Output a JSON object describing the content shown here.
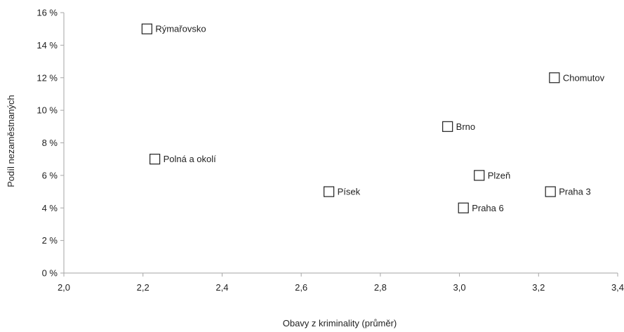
{
  "chart_data": {
    "type": "scatter",
    "xlabel": "Obavy z kriminality (průměr)",
    "ylabel": "Podíl nezaměstnaných",
    "xlim": [
      2.0,
      3.4
    ],
    "ylim": [
      0,
      16
    ],
    "x_ticks": [
      2.0,
      2.2,
      2.4,
      2.6,
      2.8,
      3.0,
      3.2,
      3.4
    ],
    "x_tick_labels": [
      "2,0",
      "2,2",
      "2,4",
      "2,6",
      "2,8",
      "3,0",
      "3,2",
      "3,4"
    ],
    "y_ticks": [
      0,
      2,
      4,
      6,
      8,
      10,
      12,
      14,
      16
    ],
    "y_tick_labels": [
      "0 %",
      "2 %",
      "4 %",
      "6 %",
      "8 %",
      "10 %",
      "12 %",
      "14 %",
      "16 %"
    ],
    "grid": false,
    "marker": "square-open",
    "points": [
      {
        "label": "Rýmařovsko",
        "x": 2.21,
        "y": 15
      },
      {
        "label": "Chomutov",
        "x": 3.24,
        "y": 12
      },
      {
        "label": "Brno",
        "x": 2.97,
        "y": 9
      },
      {
        "label": "Polná a okolí",
        "x": 2.23,
        "y": 7
      },
      {
        "label": "Plzeň",
        "x": 3.05,
        "y": 6
      },
      {
        "label": "Písek",
        "x": 2.67,
        "y": 5
      },
      {
        "label": "Praha 3",
        "x": 3.23,
        "y": 5
      },
      {
        "label": "Praha 6",
        "x": 3.01,
        "y": 4
      }
    ]
  },
  "colors": {
    "axis": "#a6a6a6",
    "text": "#1f1f1f",
    "marker_stroke": "#1f1f1f",
    "marker_fill": "#ffffff"
  }
}
